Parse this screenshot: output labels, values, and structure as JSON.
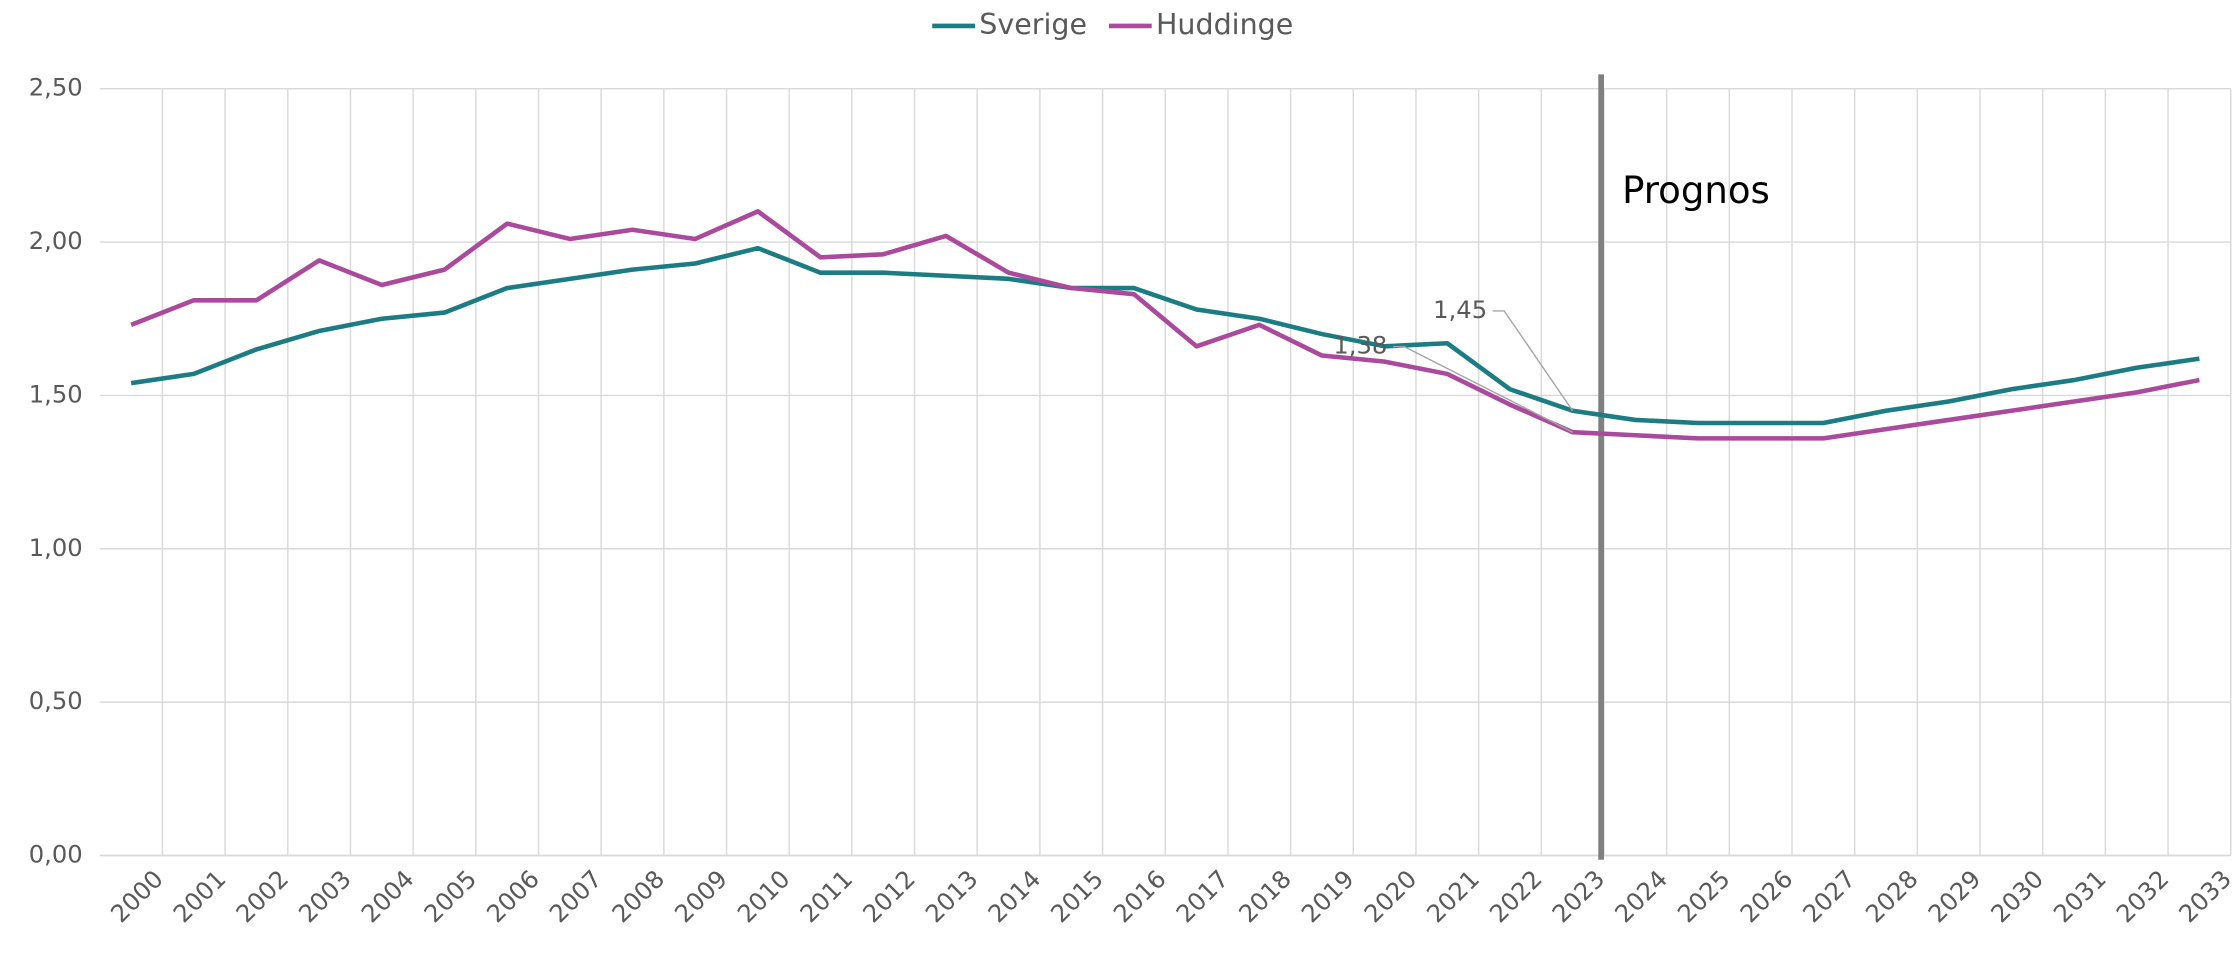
{
  "chart_data": {
    "type": "line",
    "categories": [
      "2000",
      "2001",
      "2002",
      "2003",
      "2004",
      "2005",
      "2006",
      "2007",
      "2008",
      "2009",
      "2010",
      "2011",
      "2012",
      "2013",
      "2014",
      "2015",
      "2016",
      "2017",
      "2018",
      "2019",
      "2020",
      "2021",
      "2022",
      "2023",
      "2024",
      "2025",
      "2026",
      "2027",
      "2028",
      "2029",
      "2030",
      "2031",
      "2032",
      "2033"
    ],
    "series": [
      {
        "name": "Sverige",
        "color": "#1b7d83",
        "values": [
          1.54,
          1.57,
          1.65,
          1.71,
          1.75,
          1.77,
          1.85,
          1.88,
          1.91,
          1.93,
          1.98,
          1.9,
          1.9,
          1.89,
          1.88,
          1.85,
          1.85,
          1.78,
          1.75,
          1.7,
          1.66,
          1.67,
          1.52,
          1.45,
          1.42,
          1.41,
          1.41,
          1.41,
          1.45,
          1.48,
          1.52,
          1.55,
          1.59,
          1.62
        ],
        "value_labels": [
          null,
          null,
          null,
          null,
          null,
          null,
          null,
          null,
          null,
          null,
          null,
          null,
          null,
          null,
          null,
          null,
          null,
          null,
          null,
          null,
          null,
          null,
          null,
          "1,45",
          null,
          null,
          null,
          null,
          null,
          null,
          null,
          null,
          null,
          null
        ]
      },
      {
        "name": "Huddinge",
        "color": "#ab4a9c",
        "values": [
          1.73,
          1.81,
          1.81,
          1.94,
          1.86,
          1.91,
          2.06,
          2.01,
          2.04,
          2.01,
          2.1,
          1.95,
          1.96,
          2.02,
          1.9,
          1.85,
          1.83,
          1.66,
          1.73,
          1.63,
          1.61,
          1.57,
          1.47,
          1.38,
          1.37,
          1.36,
          1.36,
          1.36,
          1.39,
          1.42,
          1.45,
          1.48,
          1.51,
          1.55
        ],
        "value_labels": [
          null,
          null,
          null,
          null,
          null,
          null,
          null,
          null,
          null,
          null,
          null,
          null,
          null,
          null,
          null,
          null,
          null,
          null,
          null,
          null,
          null,
          null,
          null,
          "1,38",
          null,
          null,
          null,
          null,
          null,
          null,
          null,
          null,
          null,
          null
        ]
      }
    ],
    "ylim": [
      0,
      2.5
    ],
    "yticks": [
      {
        "value": 0,
        "label": "0,00"
      },
      {
        "value": 0.5,
        "label": "0,50"
      },
      {
        "value": 1,
        "label": "1,00"
      },
      {
        "value": 1.5,
        "label": "1,50"
      },
      {
        "value": 2,
        "label": "2,00"
      },
      {
        "value": 2.5,
        "label": "2,50"
      }
    ],
    "grid": true,
    "legend": "top",
    "annotations": [
      {
        "text": "Prognos"
      }
    ]
  }
}
